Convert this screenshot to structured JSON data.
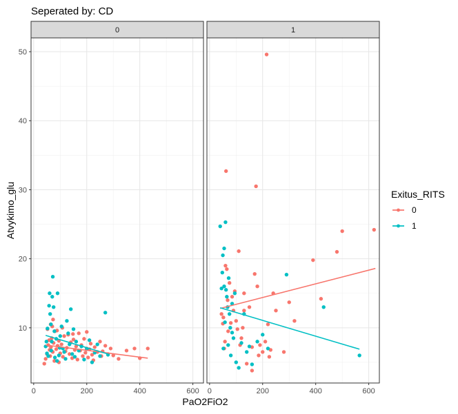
{
  "chart_data": {
    "type": "scatter",
    "title": "Seperated by:  CD",
    "xlabel": "PaO2FiO2",
    "ylabel": "Atvykimo_glu",
    "xlim": [
      -10,
      640
    ],
    "ylim": [
      2,
      52
    ],
    "x_ticks": [
      0,
      200,
      400,
      600
    ],
    "y_ticks": [
      10,
      20,
      30,
      40,
      50
    ],
    "grid": true,
    "legend": {
      "title": "Exitus_RITS",
      "position": "right",
      "entries": [
        {
          "label": "0",
          "color": "#F8766D"
        },
        {
          "label": "1",
          "color": "#00BFC4"
        }
      ]
    },
    "facets": [
      {
        "label": "0",
        "series": [
          {
            "name": "0",
            "color": "#F8766D",
            "points": [
              [
                40,
                4.8
              ],
              [
                45,
                5.5
              ],
              [
                50,
                6.2
              ],
              [
                55,
                7.5
              ],
              [
                58,
                8.2
              ],
              [
                60,
                6.8
              ],
              [
                62,
                5.9
              ],
              [
                65,
                7.2
              ],
              [
                68,
                8.5
              ],
              [
                70,
                10.2
              ],
              [
                72,
                6.5
              ],
              [
                75,
                7.8
              ],
              [
                78,
                5.2
              ],
              [
                80,
                9.5
              ],
              [
                85,
                6.9
              ],
              [
                90,
                7.4
              ],
              [
                95,
                8.1
              ],
              [
                100,
                6.3
              ],
              [
                105,
                7.6
              ],
              [
                110,
                5.8
              ],
              [
                115,
                8.8
              ],
              [
                120,
                6.6
              ],
              [
                125,
                7.1
              ],
              [
                130,
                9.0
              ],
              [
                135,
                6.2
              ],
              [
                140,
                7.9
              ],
              [
                145,
                5.6
              ],
              [
                150,
                8.3
              ],
              [
                155,
                6.8
              ],
              [
                160,
                7.3
              ],
              [
                165,
                5.4
              ],
              [
                170,
                9.2
              ],
              [
                175,
                6.7
              ],
              [
                180,
                7.5
              ],
              [
                185,
                5.9
              ],
              [
                190,
                8.4
              ],
              [
                195,
                6.4
              ],
              [
                200,
                7.0
              ],
              [
                205,
                5.7
              ],
              [
                210,
                6.9
              ],
              [
                215,
                7.7
              ],
              [
                220,
                6.1
              ],
              [
                225,
                5.3
              ],
              [
                230,
                7.2
              ],
              [
                240,
                6.5
              ],
              [
                250,
                8.0
              ],
              [
                255,
                5.9
              ],
              [
                260,
                6.6
              ],
              [
                270,
                7.4
              ],
              [
                280,
                6.2
              ],
              [
                290,
                7.0
              ],
              [
                300,
                6.0
              ],
              [
                320,
                5.5
              ],
              [
                350,
                6.7
              ],
              [
                380,
                7.0
              ],
              [
                400,
                5.6
              ],
              [
                430,
                7.0
              ],
              [
                52,
                9.8
              ],
              [
                64,
                10.5
              ],
              [
                88,
                9.6
              ],
              [
                108,
                10.0
              ],
              [
                148,
                9.1
              ],
              [
                200,
                9.4
              ],
              [
                73,
                11.2
              ],
              [
                95,
                5.0
              ]
            ],
            "trend": [
              [
                45,
                7.5
              ],
              [
                430,
                5.6
              ]
            ]
          },
          {
            "name": "1",
            "color": "#00BFC4",
            "points": [
              [
                50,
                6.3
              ],
              [
                55,
                5.9
              ],
              [
                58,
                13.2
              ],
              [
                60,
                15.0
              ],
              [
                62,
                12.0
              ],
              [
                65,
                10.5
              ],
              [
                68,
                8.0
              ],
              [
                70,
                14.5
              ],
              [
                72,
                17.4
              ],
              [
                75,
                13.0
              ],
              [
                78,
                9.5
              ],
              [
                80,
                5.7
              ],
              [
                85,
                8.4
              ],
              [
                90,
                15.0
              ],
              [
                95,
                6.0
              ],
              [
                100,
                8.8
              ],
              [
                105,
                10.2
              ],
              [
                110,
                7.0
              ],
              [
                115,
                6.5
              ],
              [
                120,
                5.5
              ],
              [
                125,
                11.0
              ],
              [
                130,
                9.2
              ],
              [
                135,
                7.6
              ],
              [
                140,
                12.7
              ],
              [
                145,
                6.2
              ],
              [
                150,
                9.8
              ],
              [
                155,
                5.8
              ],
              [
                160,
                8.0
              ],
              [
                170,
                6.7
              ],
              [
                180,
                7.3
              ],
              [
                190,
                5.4
              ],
              [
                200,
                6.9
              ],
              [
                210,
                8.2
              ],
              [
                220,
                5.0
              ],
              [
                230,
                6.4
              ],
              [
                240,
                7.6
              ],
              [
                250,
                5.9
              ],
              [
                270,
                12.2
              ],
              [
                280,
                6.1
              ],
              [
                48,
                8.0
              ],
              [
                45,
                7.3
              ],
              [
                52,
                9.9
              ],
              [
                88,
                5.2
              ],
              [
                66,
                6.7
              ],
              [
                98,
                7.1
              ]
            ],
            "trend": [
              [
                45,
                8.9
              ],
              [
                280,
                6.2
              ]
            ]
          }
        ]
      },
      {
        "label": "1",
        "series": [
          {
            "name": "0",
            "color": "#F8766D",
            "points": [
              [
                45,
                12.0
              ],
              [
                50,
                10.6
              ],
              [
                52,
                11.5
              ],
              [
                55,
                7.0
              ],
              [
                58,
                8.0
              ],
              [
                60,
                19.0
              ],
              [
                62,
                32.7
              ],
              [
                65,
                18.5
              ],
              [
                68,
                14.0
              ],
              [
                70,
                9.5
              ],
              [
                75,
                16.5
              ],
              [
                80,
                10.7
              ],
              [
                85,
                14.5
              ],
              [
                90,
                12.5
              ],
              [
                95,
                15.3
              ],
              [
                100,
                11.0
              ],
              [
                105,
                9.8
              ],
              [
                110,
                21.1
              ],
              [
                115,
                7.5
              ],
              [
                120,
                8.5
              ],
              [
                125,
                10.0
              ],
              [
                130,
                15.0
              ],
              [
                140,
                4.8
              ],
              [
                150,
                13.0
              ],
              [
                160,
                7.2
              ],
              [
                170,
                17.8
              ],
              [
                175,
                30.5
              ],
              [
                180,
                16.0
              ],
              [
                185,
                6.0
              ],
              [
                190,
                7.5
              ],
              [
                200,
                6.5
              ],
              [
                210,
                8.0
              ],
              [
                215,
                49.6
              ],
              [
                220,
                10.5
              ],
              [
                225,
                5.8
              ],
              [
                230,
                6.8
              ],
              [
                240,
                15.0
              ],
              [
                250,
                12.5
              ],
              [
                280,
                6.5
              ],
              [
                300,
                13.7
              ],
              [
                320,
                11.0
              ],
              [
                390,
                19.8
              ],
              [
                420,
                14.2
              ],
              [
                480,
                21.0
              ],
              [
                500,
                24.0
              ],
              [
                620,
                24.2
              ],
              [
                160,
                3.8
              ],
              [
                130,
                12.5
              ]
            ],
            "trend": [
              [
                40,
                12.8
              ],
              [
                625,
                18.6
              ]
            ]
          },
          {
            "name": "1",
            "color": "#00BFC4",
            "points": [
              [
                40,
                24.7
              ],
              [
                45,
                15.7
              ],
              [
                48,
                18.0
              ],
              [
                50,
                20.5
              ],
              [
                52,
                7.0
              ],
              [
                55,
                21.5
              ],
              [
                58,
                10.8
              ],
              [
                60,
                25.3
              ],
              [
                62,
                15.5
              ],
              [
                65,
                14.5
              ],
              [
                68,
                13.0
              ],
              [
                70,
                7.5
              ],
              [
                72,
                17.2
              ],
              [
                75,
                12.0
              ],
              [
                78,
                10.0
              ],
              [
                80,
                6.0
              ],
              [
                85,
                13.5
              ],
              [
                90,
                8.5
              ],
              [
                95,
                15.0
              ],
              [
                100,
                5.0
              ],
              [
                110,
                4.2
              ],
              [
                120,
                7.8
              ],
              [
                130,
                12.0
              ],
              [
                140,
                6.5
              ],
              [
                150,
                7.3
              ],
              [
                160,
                4.7
              ],
              [
                180,
                8.0
              ],
              [
                200,
                9.0
              ],
              [
                220,
                7.0
              ],
              [
                290,
                17.7
              ],
              [
                430,
                13.0
              ],
              [
                565,
                6.0
              ],
              [
                55,
                16.0
              ],
              [
                85,
                9.3
              ]
            ],
            "trend": [
              [
                40,
                12.9
              ],
              [
                565,
                6.9
              ]
            ]
          }
        ]
      }
    ]
  }
}
